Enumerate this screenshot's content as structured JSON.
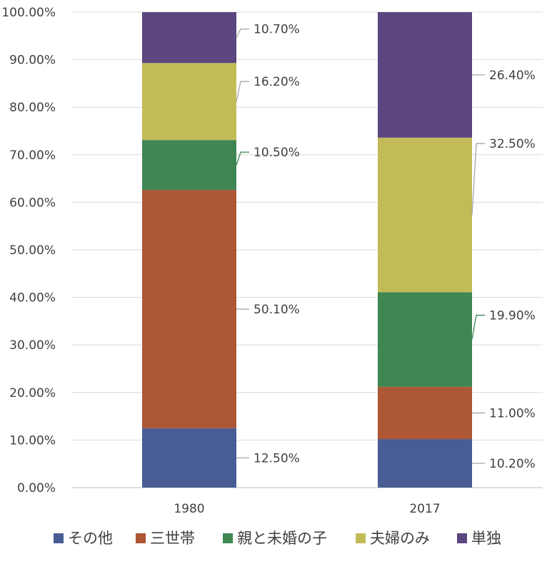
{
  "chart_data": {
    "type": "bar",
    "stacked": true,
    "categories": [
      "1980",
      "2017"
    ],
    "series": [
      {
        "name": "その他",
        "values": [
          12.5,
          10.2
        ],
        "labels": [
          "12.50%",
          "10.20%"
        ],
        "color": "#485D93"
      },
      {
        "name": "三世帯",
        "values": [
          50.1,
          11.0
        ],
        "labels": [
          "50.10%",
          "11.00%"
        ],
        "color": "#AD5737"
      },
      {
        "name": "親と未婚の子",
        "values": [
          10.5,
          19.9
        ],
        "labels": [
          "10.50%",
          "19.90%"
        ],
        "color": "#3F8653"
      },
      {
        "name": "夫婦のみ",
        "values": [
          16.2,
          32.5
        ],
        "labels": [
          "16.20%",
          "32.50%"
        ],
        "color": "#C3BB58"
      },
      {
        "name": "単独",
        "values": [
          10.7,
          26.4
        ],
        "labels": [
          "10.70%",
          "26.40%"
        ],
        "color": "#5B467F"
      }
    ],
    "y_ticks": [
      "0.00%",
      "10.00%",
      "20.00%",
      "30.00%",
      "40.00%",
      "50.00%",
      "60.00%",
      "70.00%",
      "80.00%",
      "90.00%",
      "100.00%"
    ],
    "ylim": [
      0,
      100
    ],
    "grid": true,
    "legend_position": "bottom",
    "title": "",
    "xlabel": "",
    "ylabel": ""
  }
}
